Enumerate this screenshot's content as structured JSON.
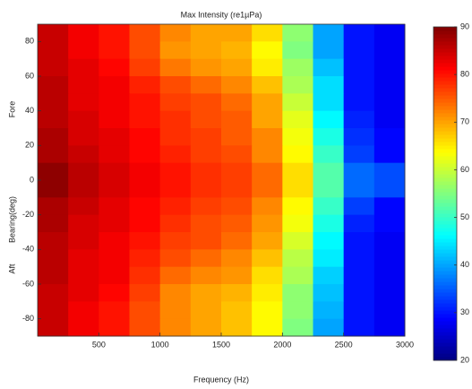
{
  "chart_data": {
    "type": "heatmap",
    "title": "Max Intensity (re1µPa)",
    "x_label": "Frequency (Hz)",
    "y_label": "Bearing(deg)",
    "annotations": [
      "Fore",
      "Aft"
    ],
    "colormap": "jet",
    "xlim": [
      0,
      3000
    ],
    "xticks": [
      500,
      1000,
      1500,
      2000,
      2500,
      3000
    ],
    "ylim": [
      -90,
      90
    ],
    "yticks": [
      -80,
      -60,
      -40,
      -20,
      0,
      20,
      40,
      60,
      80
    ],
    "clim": [
      20,
      90
    ],
    "cticks": [
      20,
      30,
      40,
      50,
      60,
      70,
      80,
      90
    ],
    "xbins": [
      0,
      250,
      500,
      750,
      1000,
      1250,
      1500,
      1750,
      2000,
      2250,
      2500,
      2750,
      3000
    ],
    "ybins": [
      90,
      80,
      70,
      60,
      50,
      40,
      30,
      20,
      10,
      0,
      -10,
      -20,
      -30,
      -40,
      -50,
      -60,
      -70,
      -80,
      -90
    ],
    "z": [
      [
        85,
        82,
        80,
        76,
        72,
        70,
        70,
        66,
        56,
        40,
        30,
        28
      ],
      [
        85,
        82,
        80,
        76,
        71,
        70,
        69,
        64,
        55,
        40,
        30,
        28
      ],
      [
        85,
        83,
        81,
        77,
        73,
        71,
        70,
        65,
        57,
        42,
        30,
        28
      ],
      [
        86,
        83,
        82,
        79,
        76,
        74,
        72,
        68,
        58,
        44,
        30,
        28
      ],
      [
        86,
        83,
        82,
        80,
        77,
        76,
        74,
        70,
        60,
        44,
        30,
        28
      ],
      [
        86,
        84,
        82,
        80,
        78,
        76,
        75,
        70,
        62,
        46,
        31,
        28
      ],
      [
        87,
        84,
        83,
        81,
        78,
        77,
        75,
        72,
        63,
        48,
        32,
        29
      ],
      [
        87,
        85,
        83,
        81,
        79,
        77,
        76,
        72,
        64,
        50,
        33,
        29
      ],
      [
        89,
        86,
        84,
        82,
        80,
        78,
        77,
        74,
        66,
        52,
        36,
        34
      ],
      [
        89,
        86,
        84,
        82,
        80,
        78,
        77,
        74,
        66,
        52,
        36,
        34
      ],
      [
        87,
        85,
        83,
        81,
        79,
        77,
        76,
        72,
        64,
        50,
        33,
        29
      ],
      [
        87,
        84,
        83,
        81,
        78,
        76,
        75,
        71,
        63,
        48,
        31,
        29
      ],
      [
        86,
        84,
        82,
        80,
        77,
        76,
        74,
        70,
        61,
        46,
        30,
        28
      ],
      [
        86,
        83,
        82,
        79,
        76,
        74,
        72,
        68,
        59,
        45,
        30,
        28
      ],
      [
        86,
        83,
        82,
        78,
        74,
        72,
        71,
        66,
        58,
        43,
        30,
        28
      ],
      [
        85,
        83,
        81,
        77,
        72,
        70,
        69,
        65,
        56,
        42,
        30,
        28
      ],
      [
        85,
        82,
        80,
        76,
        72,
        70,
        68,
        64,
        56,
        41,
        30,
        28
      ],
      [
        85,
        82,
        80,
        76,
        72,
        70,
        68,
        64,
        55,
        40,
        30,
        28
      ]
    ]
  }
}
